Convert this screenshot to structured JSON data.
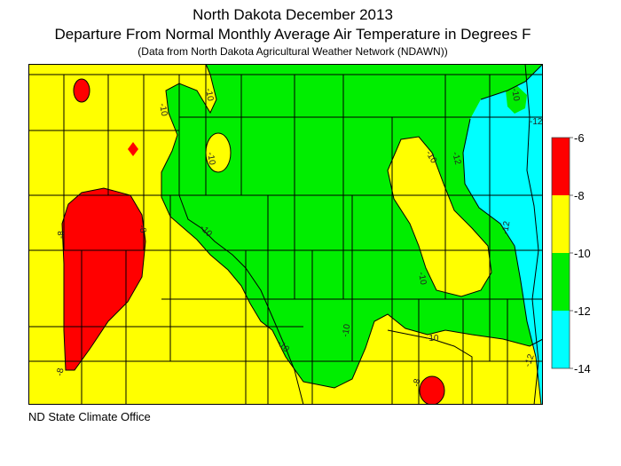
{
  "titles": {
    "line1": "North Dakota December 2013",
    "line2": "Departure From Normal Monthly Average Air Temperature in Degrees F",
    "line3": "(Data from North Dakota Agricultural Weather Network (NDAWN))"
  },
  "credit": "ND State Climate Office",
  "legend": {
    "ticks": [
      "-6",
      "-8",
      "-10",
      "-12",
      "-14"
    ],
    "bands": [
      {
        "range": "-6 to -8",
        "color": "#ff0000"
      },
      {
        "range": "-8 to -10",
        "color": "#ffff00"
      },
      {
        "range": "-10 to -12",
        "color": "#00ee00"
      },
      {
        "range": "-12 to -14",
        "color": "#00ffff"
      }
    ]
  },
  "contour_labels": [
    "-10",
    "-10",
    "-10",
    "-10",
    "-10",
    "-10",
    "-10",
    "-10",
    "-12",
    "-12",
    "-12",
    "-12",
    "-8",
    "-8",
    "-8",
    "-8",
    "-10",
    "-10"
  ]
}
